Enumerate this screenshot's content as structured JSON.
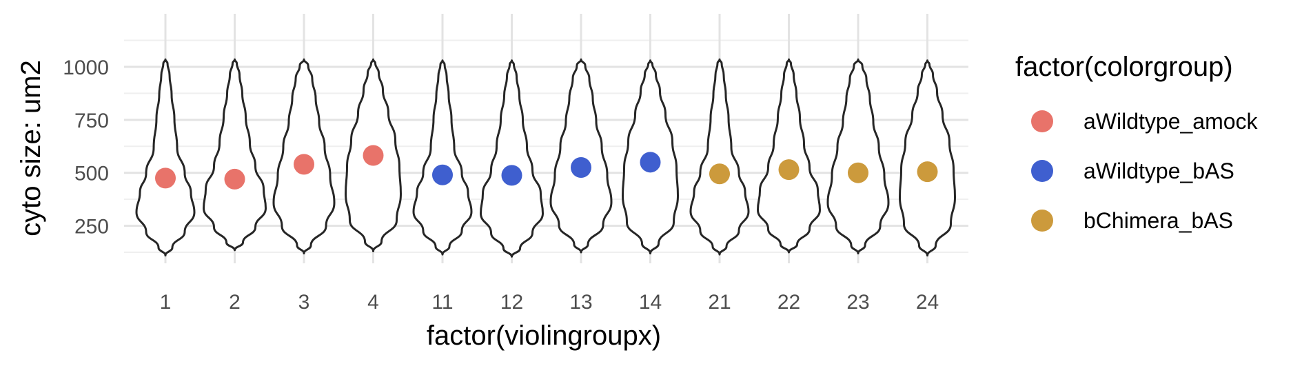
{
  "chart_data": {
    "type": "violin",
    "xlabel": "factor(violingroupx)",
    "ylabel": "cyto size: um2",
    "categories": [
      "1",
      "2",
      "3",
      "4",
      "11",
      "12",
      "13",
      "14",
      "21",
      "22",
      "23",
      "24"
    ],
    "y_ticks": [
      250,
      500,
      750,
      1000
    ],
    "ylim": [
      60,
      1090
    ],
    "grid": true,
    "legend": {
      "title": "factor(colorgroup)",
      "position": "right",
      "entries": [
        {
          "label": "aWildtype_amock",
          "color": "#E8736A"
        },
        {
          "label": "aWildtype_bAS",
          "color": "#3F5FCF"
        },
        {
          "label": "bChimera_bAS",
          "color": "#CC9A3C"
        }
      ]
    },
    "violin_range": {
      "min": [
        110,
        135,
        120,
        130,
        115,
        105,
        125,
        120,
        115,
        125,
        120,
        110
      ],
      "max": [
        1035,
        1035,
        1035,
        1035,
        1030,
        1030,
        1035,
        1030,
        1035,
        1035,
        1035,
        1030
      ]
    },
    "points": [
      {
        "x": "1",
        "y": 475,
        "group": "aWildtype_amock"
      },
      {
        "x": "2",
        "y": 470,
        "group": "aWildtype_amock"
      },
      {
        "x": "3",
        "y": 540,
        "group": "aWildtype_amock"
      },
      {
        "x": "4",
        "y": 582,
        "group": "aWildtype_amock"
      },
      {
        "x": "11",
        "y": 490,
        "group": "aWildtype_bAS"
      },
      {
        "x": "12",
        "y": 488,
        "group": "aWildtype_bAS"
      },
      {
        "x": "13",
        "y": 525,
        "group": "aWildtype_bAS"
      },
      {
        "x": "14",
        "y": 550,
        "group": "aWildtype_bAS"
      },
      {
        "x": "21",
        "y": 495,
        "group": "bChimera_bAS"
      },
      {
        "x": "22",
        "y": 515,
        "group": "bChimera_bAS"
      },
      {
        "x": "23",
        "y": 500,
        "group": "bChimera_bAS"
      },
      {
        "x": "24",
        "y": 505,
        "group": "bChimera_bAS"
      }
    ]
  }
}
